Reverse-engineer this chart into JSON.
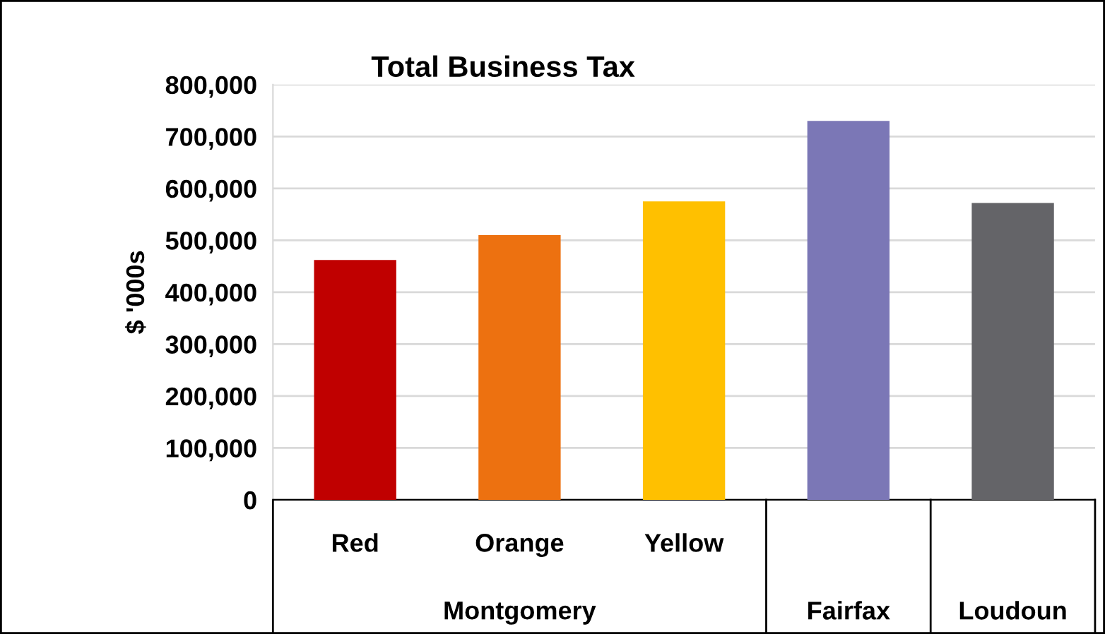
{
  "chart_data": {
    "type": "bar",
    "title": "Total Business Tax",
    "ylabel": "$ '000s",
    "categories": [
      "Red",
      "Orange",
      "Yellow",
      null,
      null
    ],
    "annotations": [
      "Montgomery",
      "Fairfax",
      "Loudoun"
    ],
    "values": [
      462000,
      510000,
      575000,
      730000,
      572000
    ],
    "colors": [
      "#c00000",
      "#ed7110",
      "#ffc000",
      "#7b77b6",
      "#646468"
    ],
    "ylim": [
      0,
      800000
    ],
    "yticks": [
      {
        "value": 0,
        "label": "0"
      },
      {
        "value": 100000,
        "label": "100,000"
      },
      {
        "value": 200000,
        "label": "200,000"
      },
      {
        "value": 300000,
        "label": "300,000"
      },
      {
        "value": 400000,
        "label": "400,000"
      },
      {
        "value": 500000,
        "label": "500,000"
      },
      {
        "value": 600000,
        "label": "600,000"
      },
      {
        "value": 700000,
        "label": "700,000"
      },
      {
        "value": 800000,
        "label": "800,000"
      }
    ],
    "grid": "y",
    "legend": false
  }
}
